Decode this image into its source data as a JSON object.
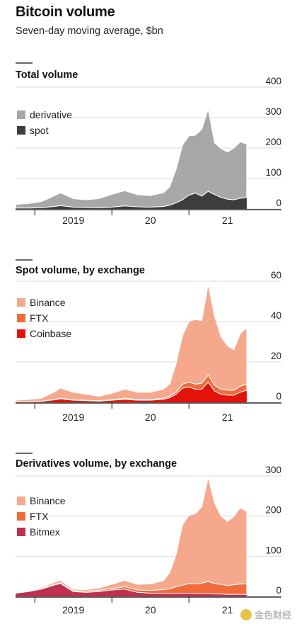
{
  "header": {
    "title": "Bitcoin volume",
    "subtitle": "Seven-day moving average, $bn"
  },
  "watermark": {
    "text": "金色财经"
  },
  "chart_data": [
    {
      "type": "area",
      "stacked": true,
      "title": "Total volume",
      "unit": "$bn",
      "x_ticks": [
        "2019",
        "20",
        "21"
      ],
      "ylim": [
        0,
        400
      ],
      "yticks": [
        0,
        100,
        200,
        300,
        400
      ],
      "legend_position": "left",
      "x": [
        "2018-10",
        "2018-12",
        "2019-02",
        "2019-04",
        "2019-05",
        "2019-07",
        "2019-09",
        "2019-11",
        "2020-01",
        "2020-03",
        "2020-05",
        "2020-07",
        "2020-09",
        "2020-10",
        "2020-11",
        "2020-12",
        "2021-01",
        "2021-02",
        "2021-03",
        "2021-04",
        "2021-05",
        "2021-06",
        "2021-07",
        "2021-08",
        "2021-09",
        "2021-10"
      ],
      "series": [
        {
          "name": "spot",
          "color": "#3d3d3d",
          "values": [
            3,
            3,
            4,
            8,
            11,
            6,
            5,
            4,
            6,
            10,
            7,
            6,
            8,
            12,
            20,
            30,
            45,
            52,
            42,
            58,
            47,
            38,
            32,
            30,
            35,
            38
          ]
        },
        {
          "name": "derivative",
          "color": "#a8a8a8",
          "values": [
            12,
            15,
            20,
            35,
            42,
            28,
            25,
            30,
            42,
            50,
            40,
            38,
            45,
            60,
            110,
            180,
            195,
            190,
            220,
            270,
            170,
            160,
            155,
            170,
            185,
            175
          ]
        }
      ]
    },
    {
      "type": "area",
      "stacked": true,
      "title": "Spot volume, by exchange",
      "unit": "$bn",
      "x_ticks": [
        "2019",
        "20",
        "21"
      ],
      "ylim": [
        0,
        60
      ],
      "yticks": [
        0,
        20,
        40,
        60
      ],
      "legend_position": "left",
      "x": [
        "2018-10",
        "2018-12",
        "2019-02",
        "2019-04",
        "2019-05",
        "2019-07",
        "2019-09",
        "2019-11",
        "2020-01",
        "2020-03",
        "2020-05",
        "2020-07",
        "2020-09",
        "2020-10",
        "2020-11",
        "2020-12",
        "2021-01",
        "2021-02",
        "2021-03",
        "2021-04",
        "2021-05",
        "2021-06",
        "2021-07",
        "2021-08",
        "2021-09",
        "2021-10"
      ],
      "series": [
        {
          "name": "Coinbase",
          "color": "#e3120b",
          "values": [
            0.3,
            0.4,
            0.5,
            1.2,
            1.8,
            1.0,
            0.8,
            0.6,
            1.0,
            1.5,
            1.0,
            1.0,
            1.5,
            2.2,
            4.0,
            7.0,
            7.5,
            6.5,
            6.5,
            10.0,
            5.5,
            4.0,
            3.5,
            3.5,
            5.0,
            6.0
          ]
        },
        {
          "name": "FTX",
          "color": "#f26b3d",
          "values": [
            0.1,
            0.1,
            0.1,
            0.2,
            0.3,
            0.2,
            0.2,
            0.2,
            0.3,
            0.5,
            0.4,
            0.4,
            0.6,
            0.8,
            1.2,
            2.0,
            2.5,
            2.5,
            3.0,
            3.5,
            3.0,
            2.5,
            2.5,
            2.5,
            3.0,
            3.0
          ]
        },
        {
          "name": "Binance",
          "color": "#f5a88c",
          "values": [
            0.6,
            0.9,
            1.4,
            3.6,
            5.0,
            3.8,
            3.0,
            2.2,
            3.2,
            4.5,
            3.6,
            3.6,
            4.4,
            6.0,
            14.0,
            24.0,
            30.0,
            32.0,
            31.0,
            45.0,
            34.0,
            26.0,
            22.0,
            20.0,
            26.0,
            28.0
          ]
        }
      ]
    },
    {
      "type": "area",
      "stacked": true,
      "title": "Derivatives volume, by exchange",
      "unit": "$bn",
      "x_ticks": [
        "2019",
        "20",
        "21"
      ],
      "ylim": [
        0,
        300
      ],
      "yticks": [
        0,
        100,
        200,
        300
      ],
      "legend_position": "left",
      "x": [
        "2018-10",
        "2018-12",
        "2019-02",
        "2019-04",
        "2019-05",
        "2019-07",
        "2019-09",
        "2019-11",
        "2020-01",
        "2020-03",
        "2020-05",
        "2020-07",
        "2020-09",
        "2020-10",
        "2020-11",
        "2020-12",
        "2021-01",
        "2021-02",
        "2021-03",
        "2021-04",
        "2021-05",
        "2021-06",
        "2021-07",
        "2021-08",
        "2021-09",
        "2021-10"
      ],
      "series": [
        {
          "name": "Bitmex",
          "color": "#c0304f",
          "values": [
            8,
            12,
            18,
            28,
            32,
            12,
            10,
            12,
            16,
            18,
            10,
            8,
            8,
            7,
            8,
            8,
            8,
            7,
            7,
            7,
            6,
            6,
            5,
            5,
            5,
            5
          ]
        },
        {
          "name": "FTX",
          "color": "#f26b3d",
          "values": [
            1,
            1,
            1,
            2,
            2,
            2,
            3,
            3,
            4,
            6,
            6,
            7,
            9,
            12,
            16,
            20,
            24,
            24,
            26,
            30,
            26,
            24,
            22,
            24,
            26,
            26
          ]
        },
        {
          "name": "Binance",
          "color": "#f5a88c",
          "values": [
            1,
            2,
            3,
            5,
            6,
            4,
            4,
            6,
            10,
            16,
            14,
            16,
            22,
            40,
            80,
            150,
            170,
            175,
            190,
            260,
            200,
            170,
            160,
            170,
            190,
            180
          ]
        }
      ]
    }
  ]
}
